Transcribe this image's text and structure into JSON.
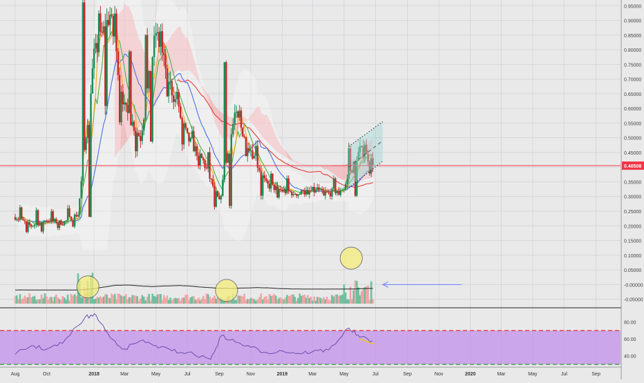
{
  "chart_data": [
    {
      "type": "candlestick",
      "panel": "price",
      "x_axis": {
        "ticks": [
          {
            "label": "Aug",
            "date": "2017-08-01"
          },
          {
            "label": "Oct",
            "date": "2017-10-01"
          },
          {
            "label": "2018",
            "date": "2018-01-01"
          },
          {
            "label": "Mar",
            "date": "2018-03-01"
          },
          {
            "label": "May",
            "date": "2018-05-01"
          },
          {
            "label": "Jul",
            "date": "2018-07-01"
          },
          {
            "label": "Sep",
            "date": "2018-09-01"
          },
          {
            "label": "Nov",
            "date": "2018-11-01"
          },
          {
            "label": "2019",
            "date": "2019-01-01"
          },
          {
            "label": "Mar",
            "date": "2019-03-01"
          },
          {
            "label": "May",
            "date": "2019-05-01"
          },
          {
            "label": "Jul",
            "date": "2019-07-01"
          },
          {
            "label": "Sep",
            "date": "2019-09-01"
          },
          {
            "label": "Nov",
            "date": "2019-11-01"
          },
          {
            "label": "2020",
            "date": "2020-01-01"
          },
          {
            "label": "Mar",
            "date": "2020-03-01"
          },
          {
            "label": "May",
            "date": "2020-05-01"
          },
          {
            "label": "Jul",
            "date": "2020-07-01"
          },
          {
            "label": "Sep",
            "date": "2020-09-01"
          }
        ]
      },
      "y_axis": {
        "range": [
          -0.065,
          0.96
        ],
        "ticks": [
          "0.95000",
          "0.90000",
          "0.85000",
          "0.80000",
          "0.75000",
          "0.70000",
          "0.65000",
          "0.60000",
          "0.55000",
          "0.50000",
          "0.45000",
          "0.40000",
          "0.35000",
          "0.30000",
          "0.25000",
          "0.20000",
          "0.15000",
          "0.10000",
          "0.05000",
          "-0.00000",
          "-0.05000"
        ],
        "position": "right"
      },
      "last_price": {
        "label": "0.40508",
        "value": 0.40508,
        "color": "#f23645"
      },
      "colors": {
        "up": "#26a69a",
        "down": "#ef5350",
        "ma_fast": "#f5a623",
        "ma_mid": "#4caf50",
        "ma_slow": "#4a6fe3",
        "ma_long": "#e53935",
        "bollinger": "#ffffff",
        "cloud_bear": "#f4a3a8",
        "cloud_bull": "#a5d6a7",
        "channel": "#9fd4d4"
      },
      "candles_monthly_approx": [
        {
          "date": "2017-08-01",
          "open": 0.23,
          "high": 0.27,
          "low": 0.17,
          "close": 0.2
        },
        {
          "date": "2017-09-01",
          "open": 0.2,
          "high": 0.26,
          "low": 0.17,
          "close": 0.22
        },
        {
          "date": "2017-10-01",
          "open": 0.22,
          "high": 0.25,
          "low": 0.19,
          "close": 0.21
        },
        {
          "date": "2017-11-01",
          "open": 0.21,
          "high": 0.26,
          "low": 0.2,
          "close": 0.24
        },
        {
          "date": "2017-12-01",
          "open": 0.24,
          "high": 0.96,
          "low": 0.22,
          "close": 0.78
        },
        {
          "date": "2018-01-01",
          "open": 0.78,
          "high": 0.96,
          "low": 0.6,
          "close": 0.92
        },
        {
          "date": "2018-02-01",
          "open": 0.92,
          "high": 0.95,
          "low": 0.55,
          "close": 0.6
        },
        {
          "date": "2018-03-01",
          "open": 0.6,
          "high": 0.85,
          "low": 0.45,
          "close": 0.5
        },
        {
          "date": "2018-04-01",
          "open": 0.5,
          "high": 0.9,
          "low": 0.48,
          "close": 0.86
        },
        {
          "date": "2018-05-01",
          "open": 0.86,
          "high": 0.89,
          "low": 0.6,
          "close": 0.66
        },
        {
          "date": "2018-06-01",
          "open": 0.66,
          "high": 0.68,
          "low": 0.46,
          "close": 0.5
        },
        {
          "date": "2018-07-01",
          "open": 0.5,
          "high": 0.52,
          "low": 0.38,
          "close": 0.42
        },
        {
          "date": "2018-08-01",
          "open": 0.42,
          "high": 0.45,
          "low": 0.25,
          "close": 0.28
        },
        {
          "date": "2018-09-01",
          "open": 0.28,
          "high": 0.8,
          "low": 0.27,
          "close": 0.58
        },
        {
          "date": "2018-10-01",
          "open": 0.58,
          "high": 0.6,
          "low": 0.42,
          "close": 0.46
        },
        {
          "date": "2018-11-01",
          "open": 0.46,
          "high": 0.5,
          "low": 0.3,
          "close": 0.34
        },
        {
          "date": "2018-12-01",
          "open": 0.34,
          "high": 0.38,
          "low": 0.28,
          "close": 0.32
        },
        {
          "date": "2019-01-01",
          "open": 0.32,
          "high": 0.36,
          "low": 0.29,
          "close": 0.31
        },
        {
          "date": "2019-02-01",
          "open": 0.31,
          "high": 0.34,
          "low": 0.29,
          "close": 0.32
        },
        {
          "date": "2019-03-01",
          "open": 0.32,
          "high": 0.34,
          "low": 0.29,
          "close": 0.31
        },
        {
          "date": "2019-04-01",
          "open": 0.31,
          "high": 0.36,
          "low": 0.29,
          "close": 0.33
        },
        {
          "date": "2019-05-01",
          "open": 0.33,
          "high": 0.48,
          "low": 0.29,
          "close": 0.46
        },
        {
          "date": "2019-06-01",
          "open": 0.46,
          "high": 0.5,
          "low": 0.38,
          "close": 0.41
        }
      ],
      "annotations": {
        "ascending_channel": {
          "start_date": "2019-05-10",
          "end_date": "2019-07-15",
          "upper": [
            0.47,
            0.555
          ],
          "middle": [
            0.4,
            0.49
          ],
          "lower": [
            0.33,
            0.42
          ]
        },
        "arrow": {
          "from_date": "2019-12-15",
          "to_date": "2019-07-15",
          "value": 0.0,
          "color": "#6b7cff"
        },
        "volume_circles": [
          {
            "date": "2017-12-20",
            "value": 0.057
          },
          {
            "date": "2018-09-15",
            "value": 0.045
          },
          {
            "date": "2019-05-15",
            "value": 0.155
          }
        ]
      }
    },
    {
      "type": "line",
      "panel": "rsi",
      "y_axis": {
        "range": [
          30,
          92
        ],
        "ticks": [
          "80.00",
          "60.00",
          "40.00"
        ],
        "bands": {
          "upper": 70,
          "lower": 30
        },
        "position": "right"
      },
      "series": [
        {
          "color": "#6a4eb0",
          "points": [
            {
              "date": "2017-08-01",
              "value": 42
            },
            {
              "date": "2017-09-01",
              "value": 52
            },
            {
              "date": "2017-10-01",
              "value": 48
            },
            {
              "date": "2017-11-01",
              "value": 55
            },
            {
              "date": "2017-12-15",
              "value": 86
            },
            {
              "date": "2018-01-05",
              "value": 88
            },
            {
              "date": "2018-02-01",
              "value": 62
            },
            {
              "date": "2018-03-01",
              "value": 48
            },
            {
              "date": "2018-04-01",
              "value": 58
            },
            {
              "date": "2018-05-01",
              "value": 52
            },
            {
              "date": "2018-06-01",
              "value": 46
            },
            {
              "date": "2018-07-01",
              "value": 44
            },
            {
              "date": "2018-08-15",
              "value": 36
            },
            {
              "date": "2018-09-05",
              "value": 64
            },
            {
              "date": "2018-10-01",
              "value": 57
            },
            {
              "date": "2018-11-01",
              "value": 50
            },
            {
              "date": "2018-12-01",
              "value": 44
            },
            {
              "date": "2019-01-01",
              "value": 46
            },
            {
              "date": "2019-02-01",
              "value": 43
            },
            {
              "date": "2019-03-01",
              "value": 45
            },
            {
              "date": "2019-04-01",
              "value": 47
            },
            {
              "date": "2019-05-10",
              "value": 73
            },
            {
              "date": "2019-06-01",
              "value": 62
            },
            {
              "date": "2019-06-25",
              "value": 58
            }
          ]
        }
      ],
      "annotations": {
        "divergence": {
          "from_date": "2019-06-01",
          "to_date": "2019-06-28",
          "from": 60,
          "to": 54,
          "color": "#f5c518"
        }
      }
    }
  ]
}
